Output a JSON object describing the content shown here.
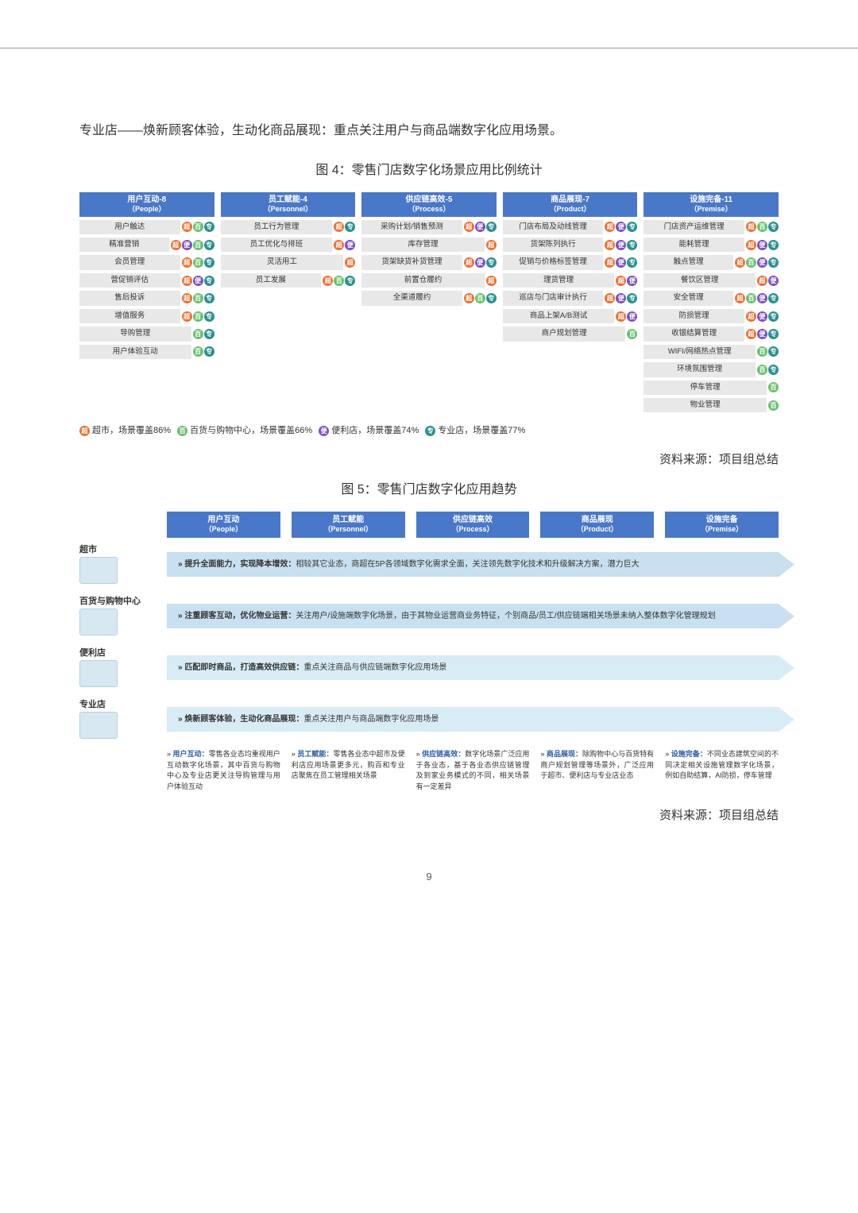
{
  "intro": "专业店——焕新顾客体验，生动化商品展现：重点关注用户与商品端数字化应用场景。",
  "fig4": {
    "title": "图 4：零售门店数字化场景应用比例统计",
    "tagColors": {
      "超": "#f07030",
      "百": "#6ac070",
      "便": "#7a50c0",
      "专": "#2a9090"
    },
    "columns": [
      {
        "headerColor": "#4a78c8",
        "title": "用户互动-8",
        "sub": "（People）",
        "items": [
          {
            "label": "用户触达",
            "tags": [
              "超",
              "百",
              "专"
            ]
          },
          {
            "label": "精准营销",
            "tags": [
              "超",
              "便",
              "百",
              "专"
            ]
          },
          {
            "label": "会员管理",
            "tags": [
              "超",
              "百",
              "专"
            ]
          },
          {
            "label": "营促销评估",
            "tags": [
              "超",
              "便",
              "专"
            ]
          },
          {
            "label": "售后投诉",
            "tags": [
              "超",
              "百",
              "专"
            ]
          },
          {
            "label": "增值服务",
            "tags": [
              "超",
              "百",
              "专"
            ]
          },
          {
            "label": "导购管理",
            "tags": [
              "百",
              "专"
            ]
          },
          {
            "label": "用户体验互动",
            "tags": [
              "百",
              "专"
            ]
          }
        ]
      },
      {
        "headerColor": "#4a78c8",
        "title": "员工赋能-4",
        "sub": "（Personnel）",
        "items": [
          {
            "label": "员工行为管理",
            "tags": [
              "超",
              "专"
            ]
          },
          {
            "label": "员工优化与排班",
            "tags": [
              "超",
              "便"
            ]
          },
          {
            "label": "灵活用工",
            "tags": [
              "超"
            ]
          },
          {
            "label": "员工发展",
            "tags": [
              "超",
              "百",
              "专"
            ]
          }
        ]
      },
      {
        "headerColor": "#4a78c8",
        "title": "供应链高效-5",
        "sub": "（Process）",
        "items": [
          {
            "label": "采购计划/销售预测",
            "tags": [
              "超",
              "便",
              "专"
            ]
          },
          {
            "label": "库存管理",
            "tags": [
              "超"
            ]
          },
          {
            "label": "货架缺货补货管理",
            "tags": [
              "超",
              "便",
              "专"
            ]
          },
          {
            "label": "前置仓履约",
            "tags": [
              "超"
            ]
          },
          {
            "label": "全渠道履约",
            "tags": [
              "超",
              "百",
              "专"
            ]
          }
        ]
      },
      {
        "headerColor": "#4a78c8",
        "title": "商品展现-7",
        "sub": "（Product）",
        "items": [
          {
            "label": "门店布局及动线管理",
            "tags": [
              "超",
              "便",
              "专"
            ]
          },
          {
            "label": "货架陈列执行",
            "tags": [
              "超",
              "便",
              "专"
            ]
          },
          {
            "label": "促销与价格标签管理",
            "tags": [
              "超",
              "便",
              "专"
            ]
          },
          {
            "label": "理货管理",
            "tags": [
              "超",
              "便"
            ]
          },
          {
            "label": "巡店与门店审计执行",
            "tags": [
              "超",
              "便",
              "专"
            ]
          },
          {
            "label": "商品上架A/B测试",
            "tags": [
              "超",
              "便"
            ]
          },
          {
            "label": "商户规划管理",
            "tags": [
              "百"
            ]
          }
        ]
      },
      {
        "headerColor": "#4a78c8",
        "title": "设施完备-11",
        "sub": "（Premise）",
        "items": [
          {
            "label": "门店资产运维管理",
            "tags": [
              "超",
              "百",
              "专"
            ]
          },
          {
            "label": "能耗管理",
            "tags": [
              "超",
              "便",
              "专"
            ]
          },
          {
            "label": "触点管理",
            "tags": [
              "超",
              "百",
              "便",
              "专"
            ]
          },
          {
            "label": "餐饮区管理",
            "tags": [
              "超",
              "便"
            ]
          },
          {
            "label": "安全管理",
            "tags": [
              "超",
              "百",
              "便",
              "专"
            ]
          },
          {
            "label": "防损管理",
            "tags": [
              "超",
              "便",
              "专"
            ]
          },
          {
            "label": "收银结算管理",
            "tags": [
              "超",
              "便",
              "专"
            ]
          },
          {
            "label": "WIFI/网络热点管理",
            "tags": [
              "百",
              "专"
            ]
          },
          {
            "label": "环境氛围管理",
            "tags": [
              "百",
              "专"
            ]
          },
          {
            "label": "停车管理",
            "tags": [
              "百"
            ]
          },
          {
            "label": "物业管理",
            "tags": [
              "百"
            ]
          }
        ]
      }
    ],
    "legend": [
      {
        "tag": "超",
        "text": "超市，场景覆盖86%"
      },
      {
        "tag": "百",
        "text": "百货与购物中心，场景覆盖66%"
      },
      {
        "tag": "便",
        "text": "便利店，场景覆盖74%"
      },
      {
        "tag": "专",
        "text": "专业店，场景覆盖77%"
      }
    ],
    "source": "资料来源：项目组总结"
  },
  "fig5": {
    "title": "图 5：零售门店数字化应用趋势",
    "headers": [
      {
        "title": "用户互动",
        "sub": "（People）",
        "color": "#4a78c8"
      },
      {
        "title": "员工赋能",
        "sub": "（Personnel）",
        "color": "#4a78c8"
      },
      {
        "title": "供应链高效",
        "sub": "（Process）",
        "color": "#4a78c8"
      },
      {
        "title": "商品展现",
        "sub": "（Product）",
        "color": "#4a78c8"
      },
      {
        "title": "设施完备",
        "sub": "（Premise）",
        "color": "#4a78c8"
      }
    ],
    "rows": [
      {
        "name": "超市",
        "bg": "#c8e0f0",
        "bold": "提升全面能力，实现降本增效：",
        "text": "相较其它业态，商超在5P各领域数字化需求全面，关注领先数字化技术和升级解决方案，潜力巨大"
      },
      {
        "name": "百货与购物中心",
        "bg": "#c8e0f0",
        "bold": "注重顾客互动，优化物业运营：",
        "text": "关注用户/设施端数字化场景，由于其物业运营商业务特征，个别商品/员工/供应链端相关场景未纳入整体数字化管理规划"
      },
      {
        "name": "便利店",
        "bg": "#d8ecf5",
        "bold": "匹配即时商品，打造高效供应链：",
        "text": "重点关注商品与供应链端数字化应用场景"
      },
      {
        "name": "专业店",
        "bg": "#d8ecf5",
        "bold": "焕新顾客体验，生动化商品展现：",
        "text": "重点关注用户与商品端数字化应用场景"
      }
    ],
    "bottom": [
      {
        "bold": "用户互动：",
        "text": "零售各业态均重视用户互动数字化场景，其中百货与购物中心及专业店更关注导购管理与用户体验互动"
      },
      {
        "bold": "员工赋能：",
        "text": "零售各业态中超市及便利店应用场景更多元，购百和专业店聚焦在员工管理相关场景"
      },
      {
        "bold": "供应链高效：",
        "text": "数字化场景广泛应用于各业态，基于各业态供应链管理及到家业务模式的不同，相关场景有一定差异"
      },
      {
        "bold": "商品展现：",
        "text": "除购物中心与百货特有商户规划管理等场景外，广泛应用于超市、便利店与专业店业态"
      },
      {
        "bold": "设施完备：",
        "text": "不同业态建筑空间的不同决定相关设施管理数字化场景，例如自助结算，AI防损，停车管理"
      }
    ],
    "source": "资料来源：项目组总结"
  },
  "pageNumber": "9"
}
